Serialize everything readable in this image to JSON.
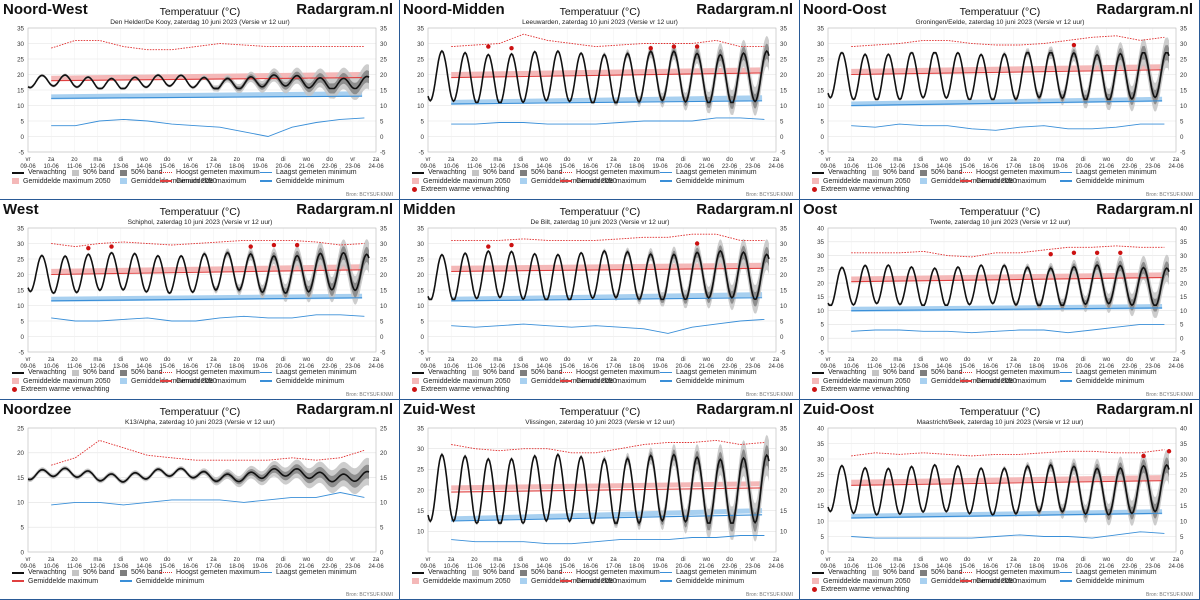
{
  "brand": "Radargram.nl",
  "chart_title": "Temperatuur (°C)",
  "credit": "Bron: BCYSUF.KNMI",
  "colors": {
    "forecast": "#111111",
    "band90": "#c4c4c4",
    "band50": "#7e7e7e",
    "record_max": "#e03030",
    "record_min": "#3a8fd8",
    "avg_max": "#e04040",
    "avg_min": "#3a8fd8",
    "avg_max_2050": "#f4b8b8",
    "avg_min_2050": "#a8d0f0",
    "extreme": "#cc1111",
    "panel_border": "#2a5a96"
  },
  "legend_labels": {
    "verwachting": "Verwachting",
    "band90": "90% band",
    "band50": "50% band",
    "record_max": "Hoogst gemeten maximum",
    "record_min": "Laagst gemeten minimum",
    "avg_max": "Gemiddelde maximum",
    "avg_min": "Gemiddelde minimum",
    "avg_max_2050": "Gemiddelde maximum 2050",
    "avg_min_2050": "Gemiddelde minimum 2050",
    "extreme": "Extreem warme verwachting"
  },
  "x_axis": {
    "days": [
      "vr",
      "za",
      "zo",
      "ma",
      "di",
      "wo",
      "do",
      "vr",
      "za",
      "zo",
      "ma",
      "di",
      "wo",
      "do",
      "vr",
      "za"
    ],
    "dates": [
      "09-06",
      "10-06",
      "11-06",
      "12-06",
      "13-06",
      "14-06",
      "15-06",
      "16-06",
      "17-06",
      "18-06",
      "19-06",
      "20-06",
      "21-06",
      "22-06",
      "23-06",
      "24-06"
    ]
  },
  "chart_data": [
    {
      "type": "line",
      "region": "Noord-West",
      "subtitle": "Den Helder/De Kooy, zaterdag 10 juni 2023 (Versie vr 12 uur)",
      "ylim": [
        -5,
        35
      ],
      "yticks": [
        -5,
        0,
        5,
        10,
        15,
        20,
        25,
        30,
        35
      ],
      "forecast": {
        "base": 17.5,
        "amp": 1.8,
        "range": [
          15.5,
          21
        ]
      },
      "band90": {
        "start_day": 7,
        "end_halfwidth": 4.0
      },
      "record_max": [
        28.5,
        31,
        31,
        29,
        28,
        28,
        29,
        30,
        29.5,
        29,
        29,
        29,
        29,
        29
      ],
      "record_min": [
        3.5,
        3.5,
        5,
        5.5,
        5,
        4,
        3.5,
        3,
        1.5,
        0,
        3,
        4.5,
        5.5,
        6
      ],
      "avg_max": [
        18,
        19
      ],
      "avg_min": [
        12.3,
        13
      ],
      "avg_max_2050": [
        18.8,
        20
      ],
      "avg_min_2050": [
        12.8,
        13.8
      ],
      "extremes": [],
      "extreme_legend": false
    },
    {
      "type": "line",
      "region": "Noord-Midden",
      "subtitle": "Leeuwarden, zaterdag 10 juni 2023 (Versie vr 12 uur)",
      "ylim": [
        -5,
        35
      ],
      "yticks": [
        -5,
        0,
        5,
        10,
        15,
        20,
        25,
        30,
        35
      ],
      "forecast": {
        "base": 19,
        "amp": 8,
        "range": [
          11,
          29
        ]
      },
      "band90": {
        "start_day": 7,
        "end_halfwidth": 5.0
      },
      "record_max": [
        29,
        29.5,
        30,
        33,
        31,
        30,
        29,
        29.5,
        30,
        30,
        30,
        31,
        29,
        29
      ],
      "record_min": [
        4,
        4,
        4.5,
        4.5,
        4,
        4,
        4,
        4.5,
        5,
        5,
        5,
        6,
        6,
        5.5
      ],
      "avg_max": [
        19,
        20.5
      ],
      "avg_min": [
        10.5,
        11.5
      ],
      "avg_max_2050": [
        20,
        21.5
      ],
      "avg_min_2050": [
        11,
        12.5
      ],
      "extremes": [
        {
          "day": 2.6,
          "value": 29
        },
        {
          "day": 3.6,
          "value": 28.5
        },
        {
          "day": 9.6,
          "value": 28.5
        },
        {
          "day": 10.6,
          "value": 29
        },
        {
          "day": 11.6,
          "value": 29
        }
      ],
      "extreme_legend": true
    },
    {
      "type": "line",
      "region": "Noord-Oost",
      "subtitle": "Groningen/Eelde, zaterdag 10 juni 2023 (Versie vr 12 uur)",
      "ylim": [
        -5,
        35
      ],
      "yticks": [
        -5,
        0,
        5,
        10,
        15,
        20,
        25,
        30,
        35
      ],
      "forecast": {
        "base": 19.5,
        "amp": 7.5,
        "range": [
          12,
          27
        ]
      },
      "band90": {
        "start_day": 7,
        "end_halfwidth": 5.0
      },
      "record_max": [
        29,
        29.5,
        30,
        31,
        31,
        30,
        29.5,
        29.5,
        30,
        31,
        32,
        32.5,
        31,
        32
      ],
      "record_min": [
        3.5,
        3,
        4,
        3.5,
        3.5,
        2.5,
        2,
        3,
        3.5,
        2.5,
        2.5,
        3,
        4,
        4
      ],
      "avg_max": [
        20,
        21.5
      ],
      "avg_min": [
        10,
        11.5
      ],
      "avg_max_2050": [
        21,
        22.5
      ],
      "avg_min_2050": [
        10.5,
        12
      ],
      "extremes": [
        {
          "day": 10.6,
          "value": 29.5
        }
      ],
      "extreme_legend": true
    },
    {
      "type": "line",
      "region": "West",
      "subtitle": "Schiphol, zaterdag 10 juni 2023 (Versie vr 12 uur)",
      "ylim": [
        -5,
        35
      ],
      "yticks": [
        -5,
        0,
        5,
        10,
        15,
        20,
        25,
        30,
        35
      ],
      "forecast": {
        "base": 20.5,
        "amp": 6,
        "range": [
          14,
          27
        ]
      },
      "band90": {
        "start_day": 7,
        "end_halfwidth": 5.0
      },
      "record_max": [
        30,
        29,
        30,
        30.5,
        30,
        29.5,
        30,
        30.5,
        31,
        31,
        31,
        30.5,
        29.5,
        30
      ],
      "record_min": [
        6,
        5,
        5,
        5.5,
        6,
        5,
        5,
        6,
        6.5,
        6,
        6,
        7,
        7,
        6.5
      ],
      "avg_max": [
        20,
        21.5
      ],
      "avg_min": [
        11.5,
        12.5
      ],
      "avg_max_2050": [
        21,
        22.5
      ],
      "avg_min_2050": [
        12,
        13
      ],
      "extremes": [
        {
          "day": 2.6,
          "value": 28.5
        },
        {
          "day": 3.6,
          "value": 29
        },
        {
          "day": 9.6,
          "value": 29
        },
        {
          "day": 10.6,
          "value": 29.5
        },
        {
          "day": 11.6,
          "value": 29.5
        }
      ],
      "extreme_legend": true
    },
    {
      "type": "line",
      "region": "Midden",
      "subtitle": "De Bilt, zaterdag 10 juni 2023 (Versie vr 12 uur)",
      "ylim": [
        -5,
        35
      ],
      "yticks": [
        -5,
        0,
        5,
        10,
        15,
        20,
        25,
        30,
        35
      ],
      "forecast": {
        "base": 19.5,
        "amp": 7.5,
        "range": [
          12,
          28
        ]
      },
      "band90": {
        "start_day": 7,
        "end_halfwidth": 5.0
      },
      "record_max": [
        31,
        31,
        31,
        31.5,
        31,
        31,
        31,
        31.5,
        32,
        32,
        33,
        33,
        31,
        31
      ],
      "record_min": [
        3.5,
        3,
        3.5,
        4,
        3.5,
        3,
        3.5,
        3,
        2.5,
        1,
        3,
        4,
        5,
        5.5
      ],
      "avg_max": [
        21,
        22
      ],
      "avg_min": [
        11.5,
        12.5
      ],
      "avg_max_2050": [
        22,
        23
      ],
      "avg_min_2050": [
        12,
        13.5
      ],
      "extremes": [
        {
          "day": 2.6,
          "value": 29
        },
        {
          "day": 3.6,
          "value": 29.5
        },
        {
          "day": 11.6,
          "value": 30
        }
      ],
      "extreme_legend": true
    },
    {
      "type": "line",
      "region": "Oost",
      "subtitle": "Twente, zaterdag 10 juni 2023 (Versie vr 12 uur)",
      "ylim": [
        -5,
        40
      ],
      "yticks": [
        -5,
        0,
        5,
        10,
        15,
        20,
        25,
        30,
        35,
        40
      ],
      "forecast": {
        "base": 19,
        "amp": 7,
        "range": [
          12,
          28
        ]
      },
      "band90": {
        "start_day": 7,
        "end_halfwidth": 5.0
      },
      "record_max": [
        31,
        31,
        31,
        31.5,
        30,
        29.5,
        31,
        31,
        32,
        33,
        33,
        33.5,
        33,
        33
      ],
      "record_min": [
        2.5,
        3,
        3,
        2.5,
        2.5,
        2,
        2.5,
        3,
        3,
        2,
        3,
        4,
        5,
        5
      ],
      "avg_max": [
        20.5,
        22
      ],
      "avg_min": [
        10,
        11
      ],
      "avg_max_2050": [
        21.5,
        23
      ],
      "avg_min_2050": [
        10.5,
        11.5
      ],
      "extremes": [
        {
          "day": 9.6,
          "value": 30.5
        },
        {
          "day": 10.6,
          "value": 31
        },
        {
          "day": 11.6,
          "value": 31
        },
        {
          "day": 12.6,
          "value": 31
        }
      ],
      "extreme_legend": true
    },
    {
      "type": "line",
      "region": "Noordzee",
      "subtitle": "K13/Alpha, zaterdag 10 juni 2023 (Versie vr 12 uur)",
      "ylim": [
        0,
        25
      ],
      "yticks": [
        0,
        5,
        10,
        15,
        20,
        25
      ],
      "forecast": {
        "base": 15.5,
        "amp": 0.8,
        "range": [
          13.5,
          17.5
        ]
      },
      "band90": {
        "start_day": 7,
        "end_halfwidth": 2.8
      },
      "record_max": [
        17.5,
        19,
        22.5,
        21,
        19.5,
        19,
        18.5,
        18.5,
        18.5,
        18.5,
        19,
        18.5,
        19,
        20.5
      ],
      "record_min": [
        9.5,
        10,
        10,
        9.5,
        10,
        10.5,
        10.5,
        10.5,
        10,
        10.5,
        11,
        11,
        12,
        11
      ],
      "avg_max": [],
      "avg_min": [],
      "avg_max_2050": [],
      "avg_min_2050": [],
      "extremes": [],
      "extreme_legend": false
    },
    {
      "type": "line",
      "region": "Zuid-West",
      "subtitle": "Vlissingen, zaterdag 10 juni 2023 (Versie vr 12 uur)",
      "ylim": [
        5,
        35
      ],
      "yticks": [
        10,
        15,
        20,
        25,
        30,
        35
      ],
      "forecast": {
        "base": 20,
        "amp": 8,
        "range": [
          12,
          30
        ]
      },
      "band90": {
        "start_day": 7,
        "end_halfwidth": 5.0
      },
      "record_max": [
        31,
        30,
        29.5,
        30,
        30,
        29,
        29,
        30,
        31,
        31.5,
        31.5,
        32,
        31,
        31.5
      ],
      "record_min": [
        8,
        7.5,
        7.5,
        7.5,
        7,
        7,
        7.5,
        8,
        8,
        8,
        8.5,
        8.5,
        9,
        9
      ],
      "avg_max": [
        19.5,
        20.5
      ],
      "avg_min": [
        12.5,
        14
      ],
      "avg_max_2050": [
        20.5,
        21.5
      ],
      "avg_min_2050": [
        13,
        15
      ],
      "extremes": [],
      "extreme_legend": false
    },
    {
      "type": "line",
      "region": "Zuid-Oost",
      "subtitle": "Maastricht/Beek, zaterdag 10 juni 2023 (Versie vr 12 uur)",
      "ylim": [
        0,
        40
      ],
      "yticks": [
        0,
        5,
        10,
        15,
        20,
        25,
        30,
        35,
        40
      ],
      "forecast": {
        "base": 20,
        "amp": 7.5,
        "range": [
          12,
          30
        ]
      },
      "band90": {
        "start_day": 7,
        "end_halfwidth": 5.0
      },
      "record_max": [
        31,
        32,
        31.5,
        32,
        31.5,
        31,
        31.5,
        31.5,
        32,
        32.5,
        32.5,
        32,
        32,
        33
      ],
      "record_min": [
        5,
        4.5,
        4.5,
        4.5,
        4.5,
        4.5,
        5,
        5.5,
        5,
        5,
        4.5,
        5.5,
        6.5,
        6
      ],
      "avg_max": [
        21.5,
        23
      ],
      "avg_min": [
        11,
        12.5
      ],
      "avg_max_2050": [
        22.5,
        24
      ],
      "avg_min_2050": [
        11.5,
        13
      ],
      "extremes": [
        {
          "day": 13.6,
          "value": 31
        },
        {
          "day": 14.7,
          "value": 32.5
        }
      ],
      "extreme_legend": true
    }
  ]
}
